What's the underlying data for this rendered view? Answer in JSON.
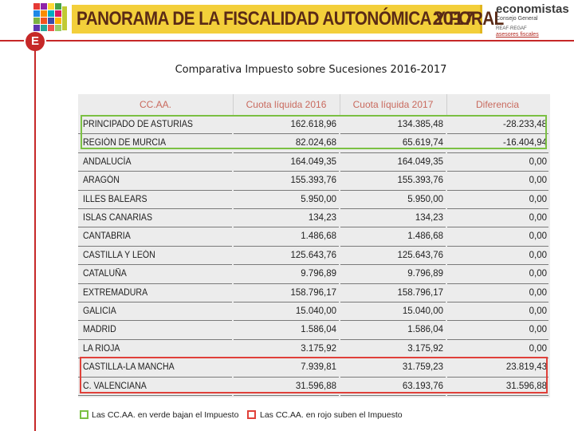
{
  "header": {
    "banner_title": "PANORAMA DE LA FISCALIDAD AUTONÓMICA Y FORAL",
    "banner_year": "2017",
    "brand": {
      "name": "economistas",
      "sub": "Consejo General",
      "reaf": "REAF·REGAF",
      "asesores": "asesores fiscales"
    },
    "badge_letter": "E"
  },
  "slide_title": "Comparativa Impuesto sobre Sucesiones 2016-2017",
  "table": {
    "headers": [
      "CC.AA.",
      "Cuota líquida 2016",
      "Cuota líquida 2017",
      "Diferencia"
    ],
    "rows": [
      {
        "name": "Principado de Asturias",
        "v2016": "162.618,96",
        "v2017": "134.385,48",
        "diff": "-28.233,48"
      },
      {
        "name": "Región de Murcia",
        "v2016": "82.024,68",
        "v2017": "65.619,74",
        "diff": "-16.404,94"
      },
      {
        "name": "Andalucía",
        "v2016": "164.049,35",
        "v2017": "164.049,35",
        "diff": "0,00"
      },
      {
        "name": "Aragón",
        "v2016": "155.393,76",
        "v2017": "155.393,76",
        "diff": "0,00"
      },
      {
        "name": "Illes Balears",
        "v2016": "5.950,00",
        "v2017": "5.950,00",
        "diff": "0,00"
      },
      {
        "name": "Islas Canarias",
        "v2016": "134,23",
        "v2017": "134,23",
        "diff": "0,00"
      },
      {
        "name": "Cantabria",
        "v2016": "1.486,68",
        "v2017": "1.486,68",
        "diff": "0,00"
      },
      {
        "name": "Castilla y León",
        "v2016": "125.643,76",
        "v2017": "125.643,76",
        "diff": "0,00"
      },
      {
        "name": "Cataluña",
        "v2016": "9.796,89",
        "v2017": "9.796,89",
        "diff": "0,00"
      },
      {
        "name": "Extremadura",
        "v2016": "158.796,17",
        "v2017": "158.796,17",
        "diff": "0,00"
      },
      {
        "name": "Galicia",
        "v2016": "15.040,00",
        "v2017": "15.040,00",
        "diff": "0,00"
      },
      {
        "name": "Madrid",
        "v2016": "1.586,04",
        "v2017": "1.586,04",
        "diff": "0,00"
      },
      {
        "name": "La Rioja",
        "v2016": "3.175,92",
        "v2017": "3.175,92",
        "diff": "0,00"
      },
      {
        "name": "Castilla-La Mancha",
        "v2016": "7.939,81",
        "v2017": "31.759,23",
        "diff": "23.819,43"
      },
      {
        "name": "C. Valenciana",
        "v2016": "31.596,88",
        "v2017": "63.193,76",
        "diff": "31.596,88"
      }
    ]
  },
  "legend": {
    "green_text": "Las CC.AA. en verde bajan el Impuesto",
    "red_text": "Las CC.AA. en rojo suben el Impuesto"
  },
  "colors": {
    "banner": "#f3cf3a",
    "accent_red": "#c62828",
    "highlight_green": "#7bc043",
    "highlight_red": "#e0413a",
    "header_text": "#c96a5e"
  }
}
